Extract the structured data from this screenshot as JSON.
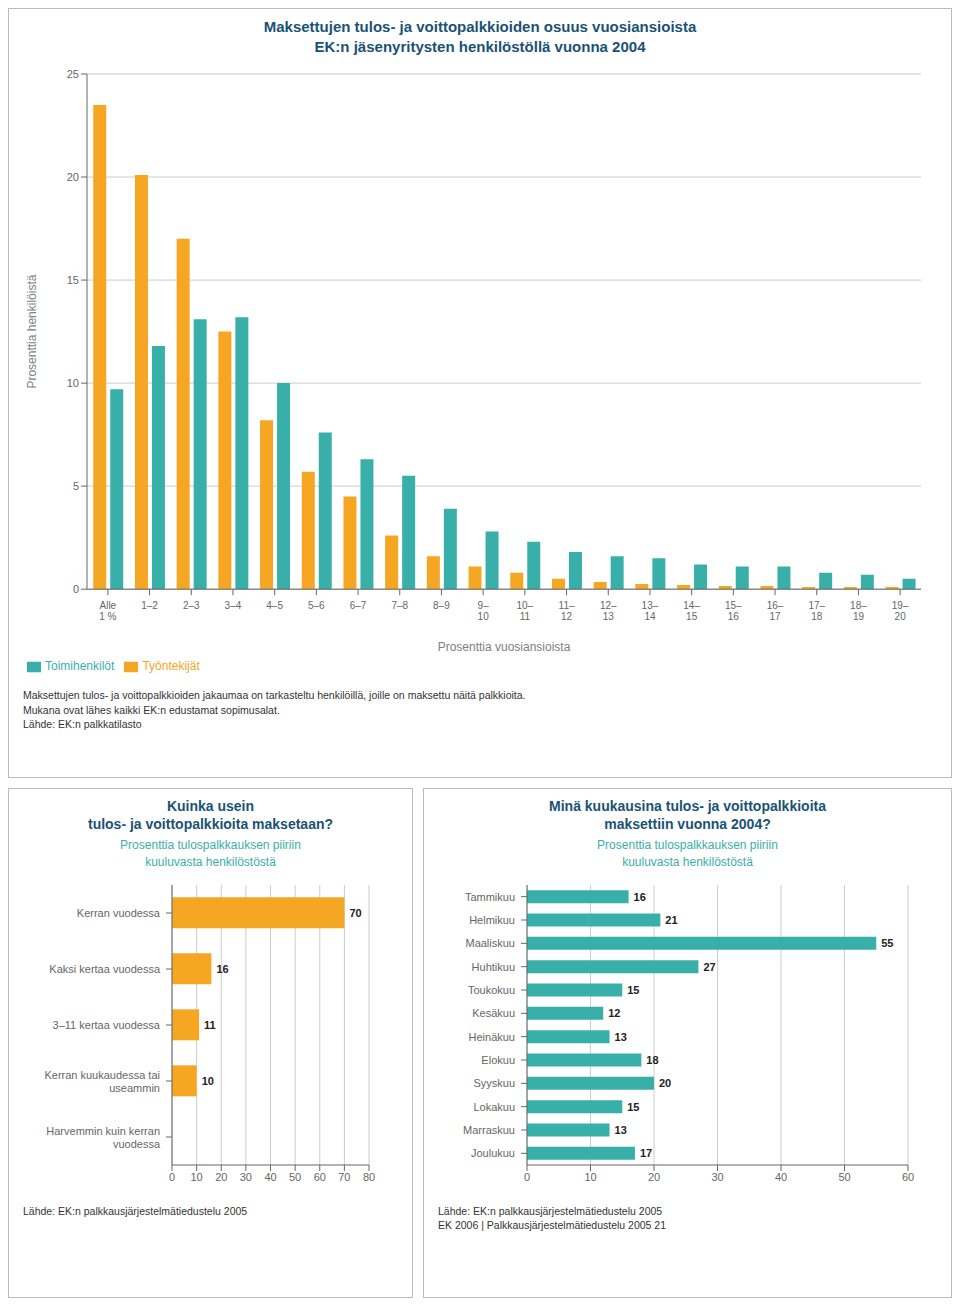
{
  "chart_data": [
    {
      "type": "bar",
      "title": "Maksettujen tulos- ja voittopalkkioiden osuus vuosiansioista\nEK:n jäsenyritysten henkilöstöllä vuonna 2004",
      "categories": [
        "Alle\n1 %",
        "1–2",
        "2–3",
        "3–4",
        "4–5",
        "5–6",
        "6–7",
        "7–8",
        "8–9",
        "9–\n10",
        "10–\n11",
        "11–\n12",
        "12–\n13",
        "13–\n14",
        "14–\n15",
        "15–\n16",
        "16–\n17",
        "17–\n18",
        "18–\n19",
        "19–\n20"
      ],
      "series": [
        {
          "name": "Työntekijät",
          "color": "#F5A623",
          "values": [
            23.5,
            20.1,
            17.0,
            12.5,
            8.2,
            5.7,
            4.5,
            2.6,
            1.6,
            1.1,
            0.8,
            0.5,
            0.35,
            0.25,
            0.2,
            0.15,
            0.15,
            0.1,
            0.1,
            0.1
          ]
        },
        {
          "name": "Toimihenkilöt",
          "color": "#39AFA9",
          "values": [
            9.7,
            11.8,
            13.1,
            13.2,
            10.0,
            7.6,
            6.3,
            5.5,
            3.9,
            2.8,
            2.3,
            1.8,
            1.6,
            1.5,
            1.2,
            1.1,
            1.1,
            0.8,
            0.7,
            0.5
          ]
        }
      ],
      "xlabel": "Prosenttia vuosiansioista",
      "ylabel": "Prosenttia henkilöistä",
      "ylim": [
        0,
        25
      ],
      "yticks": [
        0,
        5,
        10,
        15,
        20,
        25
      ],
      "grid": true,
      "legend": "bottom",
      "annotations": [
        "Maksettujen tulos- ja voittopalkkioiden jakaumaa on tarkasteltu henkilöillä, joille on maksettu näitä palkkioita.",
        "Mukana ovat lähes kaikki EK:n edustamat sopimusalat.",
        "Lähde: EK:n palkkatilasto"
      ]
    },
    {
      "type": "bar",
      "orientation": "horizontal",
      "title": "Kuinka usein\ntulos- ja voittopalkkioita maksetaan?",
      "subtitle": "Prosenttia tulospalkkauksen piiriin\nkuuluvasta henkilöstöstä",
      "categories": [
        "Kerran vuodessa",
        "Kaksi kertaa vuodessa",
        "3–11 kertaa vuodessa",
        "Kerran kuukaudessa tai\nuseammin",
        "Harvemmin kuin kerran\nvuodessa"
      ],
      "values": [
        70,
        16,
        11,
        10,
        0
      ],
      "color": "#F5A623",
      "xlim": [
        0,
        80
      ],
      "xticks": [
        0,
        10,
        20,
        30,
        40,
        50,
        60,
        70,
        80
      ],
      "grid": true,
      "data_labels": true,
      "annotations": [
        "Lähde: EK:n palkkausjärjestelmätiedustelu 2005"
      ]
    },
    {
      "type": "bar",
      "orientation": "horizontal",
      "title": "Minä kuukausina tulos- ja voittopalkkioita\nmaksettiin vuonna 2004?",
      "subtitle": "Prosenttia tulospalkkauksen piiriin\nkuuluvasta henkilöstöstä",
      "categories": [
        "Tammikuu",
        "Helmikuu",
        "Maaliskuu",
        "Huhtikuu",
        "Toukokuu",
        "Kesäkuu",
        "Heinäkuu",
        "Elokuu",
        "Syyskuu",
        "Lokakuu",
        "Marraskuu",
        "Joulukuu"
      ],
      "values": [
        16,
        21,
        55,
        27,
        15,
        12,
        13,
        18,
        20,
        15,
        13,
        17
      ],
      "color": "#39AFA9",
      "xlim": [
        0,
        60
      ],
      "xticks": [
        0,
        10,
        20,
        30,
        40,
        50,
        60
      ],
      "grid": true,
      "data_labels": true,
      "annotations": [
        "Lähde: EK:n palkkausjärjestelmätiedustelu 2005",
        "EK 2006  |  Palkkausjärjestelmätiedustelu 2005  21"
      ]
    }
  ]
}
